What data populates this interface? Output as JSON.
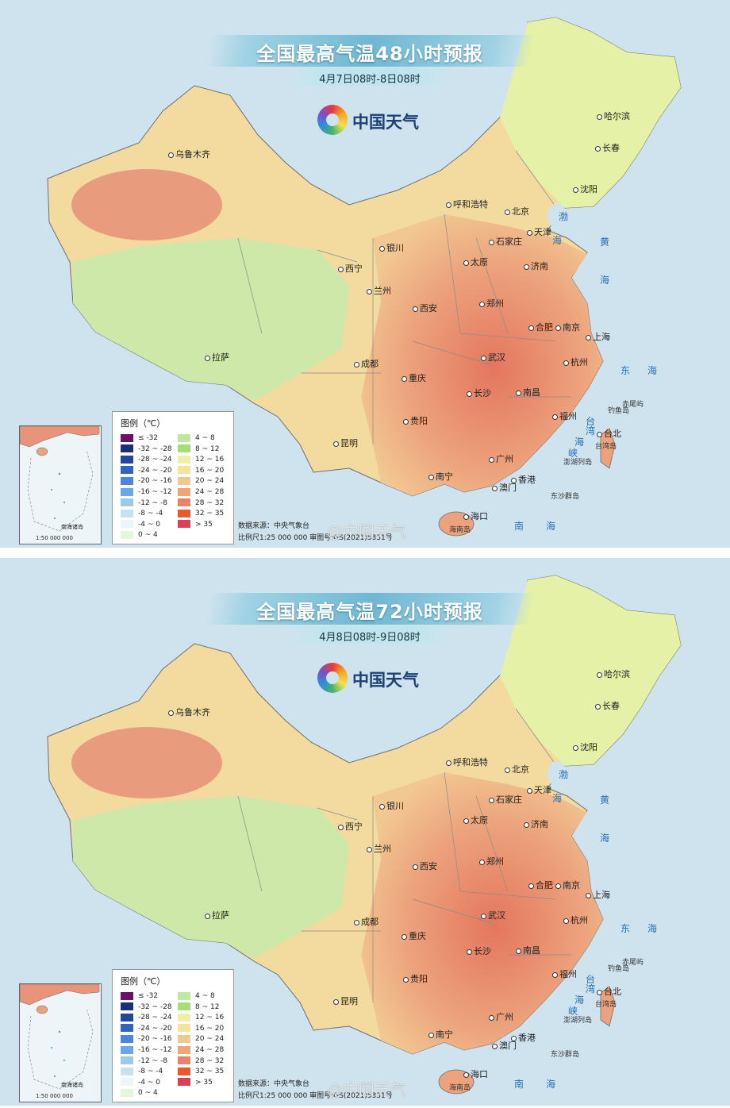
{
  "brand": {
    "name": "中国天气"
  },
  "colors": {
    "sea": "#cfe3ee",
    "east_china_hot": "#e87a5e",
    "plateau_cool": "#cde8a8"
  },
  "panels": [
    {
      "title": "全国最高气温48小时预报",
      "subtitle": "4月7日08时-8日08时"
    },
    {
      "title": "全国最高气温72小时预报",
      "subtitle": "4月8日08时-9日08时"
    }
  ],
  "cities": {
    "urumqi": "乌鲁木齐",
    "harbin": "哈尔滨",
    "changchun": "长春",
    "shenyang": "沈阳",
    "hohhot": "呼和浩特",
    "beijing": "北京",
    "tianjin": "天津",
    "shijiazhuang": "石家庄",
    "yinchuan": "银川",
    "taiyuan": "太原",
    "jinan": "济南",
    "xining": "西宁",
    "lanzhou": "兰州",
    "xian": "西安",
    "zhengzhou": "郑州",
    "hefei": "合肥",
    "nanjing": "南京",
    "shanghai": "上海",
    "lhasa": "拉萨",
    "chengdu": "成都",
    "wuhan": "武汉",
    "hangzhou": "杭州",
    "chongqing": "重庆",
    "changsha": "长沙",
    "nanchang": "南昌",
    "guiyang": "贵阳",
    "fuzhou": "福州",
    "kunming": "昆明",
    "taibei": "台北",
    "guangzhou": "广州",
    "nanning": "南宁",
    "hongkong": "香港",
    "macau": "澳门",
    "haikou": "海口"
  },
  "seas": {
    "bohai": "渤",
    "bohai2": "海",
    "yellow": "黄",
    "yellow2": "海",
    "east1": "东",
    "east2": "海",
    "south1": "南",
    "south2": "海",
    "tw1": "台",
    "tw2": "湾",
    "tw3": "海",
    "tw4": "峡"
  },
  "islands": {
    "chiwei": "赤尾屿",
    "diaoyu": "钓鱼岛",
    "taiwan": "台湾岛",
    "penghu": "澎湖列岛",
    "dongsha": "东沙群岛",
    "hainan": "海南岛"
  },
  "legend": {
    "title": "图例（℃）",
    "items": [
      {
        "label": "≤ -32",
        "color": "#6a0f6e"
      },
      {
        "label": "-32 ~ -28",
        "color": "#1a2f7a"
      },
      {
        "label": "-28 ~ -24",
        "color": "#23479c"
      },
      {
        "label": "-24 ~ -20",
        "color": "#2f63c0"
      },
      {
        "label": "-20 ~ -16",
        "color": "#4a86dd"
      },
      {
        "label": "-16 ~ -12",
        "color": "#6aa6e8"
      },
      {
        "label": "-12 ~ -8",
        "color": "#9ccbe6"
      },
      {
        "label": "-8 ~ -4",
        "color": "#c6e4f0"
      },
      {
        "label": "-4 ~ 0",
        "color": "#eaf6f7"
      },
      {
        "label": "0 ~ 4",
        "color": "#e4f7dc"
      },
      {
        "label": "4 ~ 8",
        "color": "#bfe8a3"
      },
      {
        "label": "8 ~ 12",
        "color": "#a6dc7a"
      },
      {
        "label": "12 ~ 16",
        "color": "#eef0a6"
      },
      {
        "label": "16 ~ 20",
        "color": "#f6e39c"
      },
      {
        "label": "20 ~ 24",
        "color": "#f2c892"
      },
      {
        "label": "24 ~ 28",
        "color": "#eea679"
      },
      {
        "label": "28 ~ 32",
        "color": "#e8826a"
      },
      {
        "label": "32 ~ 35",
        "color": "#e65a2e"
      },
      {
        "label": "> 35",
        "color": "#d8405a"
      }
    ]
  },
  "inset": {
    "name": "南海诸岛",
    "scale": "1:50 000 000"
  },
  "source": "数据来源：中央气象台",
  "scale": "比例尺1:25 000 000  审图号:GS(2021)5831号",
  "watermark": "@中国天气"
}
